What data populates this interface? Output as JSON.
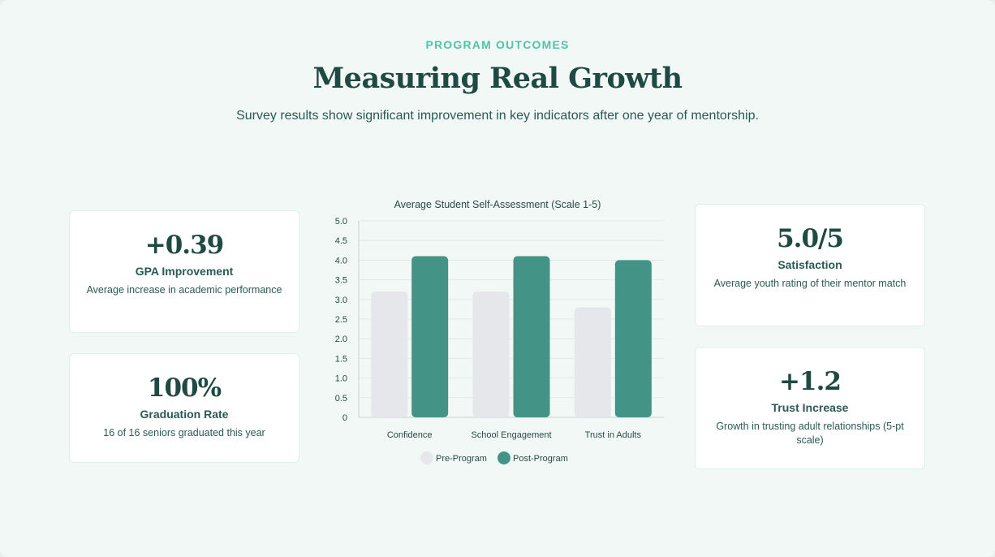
{
  "header": {
    "eyebrow": "PROGRAM OUTCOMES",
    "title": "Measuring Real Growth",
    "subtitle": "Survey results show significant improvement in key indicators after one year of mentorship."
  },
  "stats": [
    {
      "value": "+0.39",
      "label": "GPA Improvement",
      "desc": "Average increase in academic performance"
    },
    {
      "value": "100%",
      "label": "Graduation Rate",
      "desc": "16 of 16 seniors graduated this year"
    },
    {
      "value": "5.0/5",
      "label": "Satisfaction",
      "desc": "Average youth rating of their mentor match"
    },
    {
      "value": "+1.2",
      "label": "Trust Increase",
      "desc": "Growth in trusting adult relationships (5-pt scale)"
    }
  ],
  "chart_data": {
    "type": "bar",
    "title": "Average Student Self-Assessment (Scale 1-5)",
    "categories": [
      "Confidence",
      "School Engagement",
      "Trust in Adults"
    ],
    "series": [
      {
        "name": "Pre-Program",
        "values": [
          3.2,
          3.2,
          2.8
        ],
        "color": "#e6e7ea"
      },
      {
        "name": "Post-Program",
        "values": [
          4.1,
          4.1,
          4.0
        ],
        "color": "#439386"
      }
    ],
    "ylim": [
      0,
      5
    ],
    "yticks": [
      "0",
      "0.5",
      "1.0",
      "1.5",
      "2.0",
      "2.5",
      "3.0",
      "3.5",
      "4.0",
      "4.5",
      "5.0"
    ],
    "grid": true,
    "legend": "bottom"
  }
}
